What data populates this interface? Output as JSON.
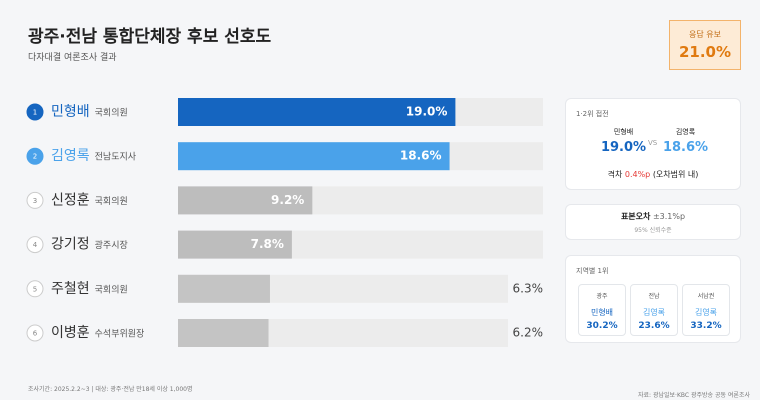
{
  "chart_data": {
    "type": "bar",
    "orientation": "horizontal",
    "title": "광주·전남 통합단체장 후보 선호도",
    "subtitle": "다자대결 여론조사 결과",
    "ranks": [
      "1",
      "2",
      "3",
      "4",
      "5",
      "6"
    ],
    "categories": [
      "민형배",
      "김영록",
      "신정훈",
      "강기정",
      "주철현",
      "이병훈"
    ],
    "roles": [
      "국회의원",
      "전남도지사",
      "국회의원",
      "광주시장",
      "국회의원",
      "수석부위원장"
    ],
    "values": [
      19.0,
      18.6,
      9.2,
      7.8,
      6.3,
      6.2
    ],
    "value_labels": [
      "19.0%",
      "18.6%",
      "9.2%",
      "7.8%",
      "6.3%",
      "6.2%"
    ],
    "colors": [
      "#1565c0",
      "#4aa2ea",
      "#bdbdbd",
      "#bdbdbd",
      "#c4c4c4",
      "#c4c4c4"
    ],
    "xlim": [
      0,
      25
    ]
  },
  "undecided": {
    "label": "응답 유보",
    "value": "21.0%"
  },
  "top2": {
    "title": "1·2위 접전",
    "first_name": "민형배",
    "first_value": "19.0%",
    "vs": "VS",
    "second_name": "김영록",
    "second_value": "18.6%",
    "gap_label": "격차",
    "gap": "0.4%p",
    "gap_note": "(오차범위 내)"
  },
  "margin": {
    "label": "표본오차",
    "value": "±3.1%p",
    "note": "95% 신뢰수준"
  },
  "regions": {
    "title": "지역별 1위",
    "items": [
      {
        "region": "광주",
        "name": "민형배",
        "value": "30.2%"
      },
      {
        "region": "전남",
        "name": "김영록",
        "value": "23.6%"
      },
      {
        "region": "서남권",
        "name": "김영록",
        "value": "33.2%"
      }
    ]
  },
  "footer": {
    "period": "조사기간: 2025.2.2~3 | 대상: 광주·전남 만18세 이상 1,000명",
    "source": "자료: 광남일보·KBC 광주방송 공동 여론조사"
  }
}
